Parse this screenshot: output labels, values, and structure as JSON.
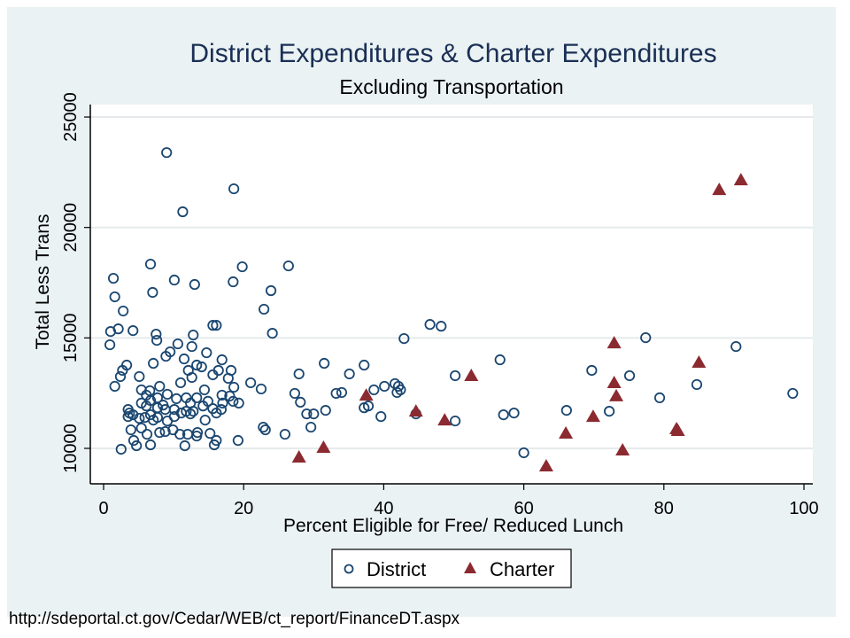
{
  "chart_data": {
    "type": "scatter",
    "title": "District Expenditures & Charter Expenditures",
    "subtitle": "Excluding Transportation",
    "xlabel": "Percent Eligible for Free/ Reduced Lunch",
    "ylabel": "Total Less Trans",
    "xlim": [
      -2,
      101.5
    ],
    "ylim": [
      8400,
      25500
    ],
    "xticks": [
      0,
      20,
      40,
      60,
      80,
      100
    ],
    "yticks": [
      10000,
      15000,
      20000,
      25000
    ],
    "grid": true,
    "legend_position": "bottom",
    "series": [
      {
        "name": "District",
        "marker": "hollow-circle",
        "color": "#1a4670",
        "points": [
          [
            9.0,
            23390
          ],
          [
            11.3,
            20710
          ],
          [
            18.6,
            21750
          ],
          [
            6.7,
            18340
          ],
          [
            1.4,
            17700
          ],
          [
            10.1,
            17620
          ],
          [
            13.0,
            17420
          ],
          [
            1.6,
            16860
          ],
          [
            2.8,
            16220
          ],
          [
            18.5,
            17540
          ],
          [
            19.8,
            18220
          ],
          [
            26.4,
            18260
          ],
          [
            23.9,
            17140
          ],
          [
            22.9,
            16300
          ],
          [
            24.1,
            15210
          ],
          [
            7.0,
            17060
          ],
          [
            1.0,
            15290
          ],
          [
            2.1,
            15410
          ],
          [
            4.2,
            15330
          ],
          [
            7.5,
            15170
          ],
          [
            7.6,
            14890
          ],
          [
            0.9,
            14690
          ],
          [
            15.6,
            15570
          ],
          [
            16.1,
            15570
          ],
          [
            12.8,
            15130
          ],
          [
            12.6,
            14610
          ],
          [
            14.7,
            14330
          ],
          [
            10.6,
            14730
          ],
          [
            9.5,
            14370
          ],
          [
            8.9,
            14170
          ],
          [
            11.5,
            14050
          ],
          [
            7.1,
            13850
          ],
          [
            3.3,
            13770
          ],
          [
            2.7,
            13530
          ],
          [
            2.4,
            13250
          ],
          [
            1.6,
            12810
          ],
          [
            5.1,
            13250
          ],
          [
            8.0,
            12810
          ],
          [
            11.0,
            12970
          ],
          [
            12.1,
            13530
          ],
          [
            13.3,
            13770
          ],
          [
            14.0,
            13690
          ],
          [
            12.6,
            13210
          ],
          [
            15.6,
            13330
          ],
          [
            16.4,
            13530
          ],
          [
            16.9,
            14010
          ],
          [
            18.2,
            13530
          ],
          [
            17.8,
            13170
          ],
          [
            18.6,
            12770
          ],
          [
            14.4,
            12650
          ],
          [
            18.0,
            12370
          ],
          [
            21.0,
            12970
          ],
          [
            22.5,
            12690
          ],
          [
            19.3,
            12050
          ],
          [
            18.5,
            12130
          ],
          [
            16.9,
            12410
          ],
          [
            17.0,
            12050
          ],
          [
            14.9,
            12130
          ],
          [
            11.8,
            12290
          ],
          [
            13.3,
            12290
          ],
          [
            12.4,
            12050
          ],
          [
            10.4,
            12250
          ],
          [
            9.1,
            12450
          ],
          [
            7.7,
            12290
          ],
          [
            6.6,
            12610
          ],
          [
            6.1,
            12410
          ],
          [
            5.4,
            12650
          ],
          [
            5.4,
            12050
          ],
          [
            6.1,
            11920
          ],
          [
            6.7,
            12170
          ],
          [
            7.7,
            11840
          ],
          [
            8.5,
            11960
          ],
          [
            8.8,
            11760
          ],
          [
            10.1,
            11760
          ],
          [
            11.1,
            11600
          ],
          [
            11.8,
            11680
          ],
          [
            12.4,
            11560
          ],
          [
            12.8,
            11680
          ],
          [
            14.2,
            11920
          ],
          [
            15.6,
            11800
          ],
          [
            16.1,
            11600
          ],
          [
            16.8,
            11760
          ],
          [
            3.5,
            11760
          ],
          [
            3.7,
            11600
          ],
          [
            3.5,
            11440
          ],
          [
            4.2,
            11520
          ],
          [
            5.1,
            11360
          ],
          [
            5.9,
            11400
          ],
          [
            6.7,
            11520
          ],
          [
            7.1,
            11280
          ],
          [
            7.7,
            11400
          ],
          [
            9.1,
            11240
          ],
          [
            10.1,
            11440
          ],
          [
            3.9,
            10840
          ],
          [
            5.4,
            10920
          ],
          [
            6.2,
            10640
          ],
          [
            8.0,
            10720
          ],
          [
            8.8,
            10760
          ],
          [
            9.9,
            10840
          ],
          [
            10.9,
            10640
          ],
          [
            12.0,
            10640
          ],
          [
            13.4,
            10720
          ],
          [
            15.2,
            10680
          ],
          [
            16.1,
            10360
          ],
          [
            4.3,
            10360
          ],
          [
            4.7,
            10120
          ],
          [
            6.7,
            10160
          ],
          [
            2.5,
            9960
          ],
          [
            11.6,
            10120
          ],
          [
            13.3,
            10560
          ],
          [
            15.8,
            10160
          ],
          [
            19.2,
            10360
          ],
          [
            14.5,
            11280
          ],
          [
            22.8,
            10960
          ],
          [
            23.1,
            10840
          ],
          [
            25.9,
            10640
          ],
          [
            27.3,
            12490
          ],
          [
            27.9,
            13370
          ],
          [
            28.1,
            12090
          ],
          [
            29.0,
            11560
          ],
          [
            29.6,
            10960
          ],
          [
            30.0,
            11560
          ],
          [
            31.5,
            13850
          ],
          [
            31.7,
            11720
          ],
          [
            33.2,
            12490
          ],
          [
            34.0,
            12530
          ],
          [
            35.1,
            13370
          ],
          [
            37.2,
            13770
          ],
          [
            37.2,
            11840
          ],
          [
            37.8,
            11920
          ],
          [
            38.6,
            12650
          ],
          [
            39.6,
            11440
          ],
          [
            40.1,
            12810
          ],
          [
            41.6,
            12930
          ],
          [
            42.1,
            12810
          ],
          [
            42.4,
            12650
          ],
          [
            41.9,
            12530
          ],
          [
            42.9,
            14970
          ],
          [
            46.6,
            15610
          ],
          [
            48.2,
            15530
          ],
          [
            44.6,
            11560
          ],
          [
            50.2,
            11240
          ],
          [
            50.2,
            13290
          ],
          [
            56.6,
            14010
          ],
          [
            57.1,
            11520
          ],
          [
            58.6,
            11600
          ],
          [
            60.0,
            9800
          ],
          [
            66.1,
            11720
          ],
          [
            69.7,
            13530
          ],
          [
            72.2,
            11680
          ],
          [
            75.1,
            13290
          ],
          [
            77.4,
            15010
          ],
          [
            79.4,
            12290
          ],
          [
            84.7,
            12890
          ],
          [
            90.3,
            14610
          ],
          [
            98.4,
            12490
          ]
        ]
      },
      {
        "name": "Charter",
        "marker": "filled-triangle",
        "color": "#8b2a30",
        "points": [
          [
            27.9,
            9600
          ],
          [
            31.4,
            10040
          ],
          [
            37.5,
            12400
          ],
          [
            44.6,
            11680
          ],
          [
            48.7,
            11280
          ],
          [
            52.5,
            13290
          ],
          [
            63.2,
            9200
          ],
          [
            66.0,
            10680
          ],
          [
            69.9,
            11440
          ],
          [
            72.9,
            14770
          ],
          [
            72.9,
            12970
          ],
          [
            73.2,
            12370
          ],
          [
            74.1,
            9920
          ],
          [
            81.8,
            10880
          ],
          [
            82.0,
            10800
          ],
          [
            85.0,
            13890
          ],
          [
            87.9,
            21710
          ],
          [
            91.0,
            22150
          ]
        ]
      }
    ]
  },
  "source_text": "http://sdeportal.ct.gov/Cedar/WEB/ct_report/FinanceDT.aspx"
}
